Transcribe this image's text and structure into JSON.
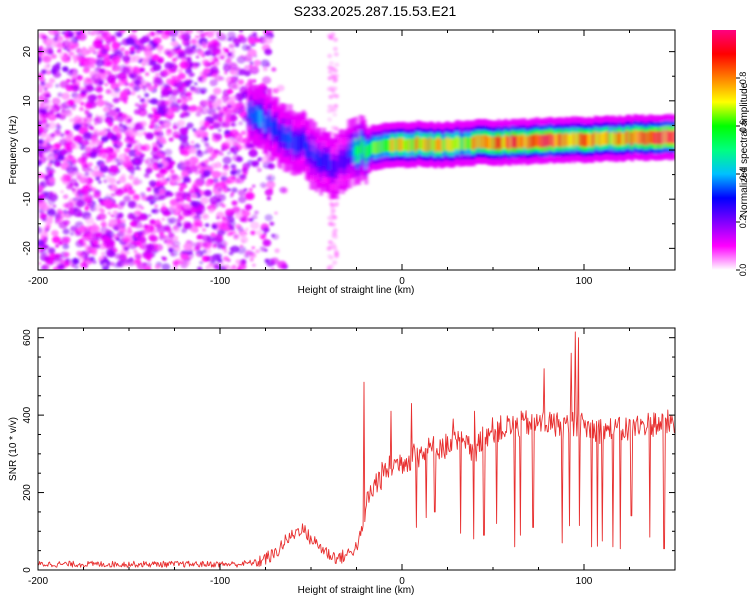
{
  "title": "S233.2025.287.15.53.E21",
  "chart_data": [
    {
      "type": "heatmap",
      "name": "spectrogram",
      "xlabel": "Height of straight line (km)",
      "ylabel": "Frequency (Hz)",
      "xlim": [
        -200,
        150
      ],
      "ylim": [
        -24.4,
        24.4
      ],
      "xticks": [
        -200,
        -100,
        0,
        100
      ],
      "yticks": [
        -20,
        -10,
        0,
        10,
        20
      ],
      "colorbar": {
        "label": "Normalized spectral amplitude",
        "range": [
          0,
          1
        ],
        "ticks": [
          0.0,
          0.2,
          0.4,
          0.6,
          0.8
        ],
        "tick_labels": [
          "0.0",
          "0.2",
          "0.4",
          "0.6",
          "0.8"
        ],
        "colors": [
          "#ffffff",
          "#ff00ff",
          "#8000ff",
          "#0000ff",
          "#00c0ff",
          "#00ff80",
          "#00ff00",
          "#ffff00",
          "#ff8000",
          "#ff0000",
          "#ff0080"
        ]
      },
      "ridge": {
        "x": [
          -85,
          -78,
          -72,
          -66,
          -60,
          -55,
          -50,
          -45,
          -40,
          -35,
          -30,
          -25,
          -20,
          -15,
          -10,
          -5,
          0,
          10,
          20,
          30,
          40,
          50,
          60,
          70,
          80,
          90,
          100,
          110,
          120,
          130,
          140,
          150
        ],
        "freq": [
          7,
          7,
          5,
          3,
          2,
          1,
          -1,
          -2,
          -3,
          -3,
          -1,
          0,
          0,
          0.5,
          1,
          1,
          1,
          1.2,
          1,
          1.3,
          1.5,
          1.5,
          1.6,
          1.8,
          2,
          2,
          2.1,
          2.3,
          2.4,
          2.5,
          2.6,
          2.7
        ],
        "amplitude": [
          0.3,
          0.4,
          0.3,
          0.35,
          0.3,
          0.3,
          0.3,
          0.3,
          0.3,
          0.25,
          0.3,
          0.5,
          0.6,
          0.65,
          0.6,
          0.7,
          0.7,
          0.75,
          0.75,
          0.6,
          0.75,
          0.8,
          0.85,
          0.8,
          0.9,
          0.8,
          0.8,
          0.8,
          0.8,
          0.85,
          0.9,
          0.9
        ]
      },
      "noise_region": {
        "x_range": [
          -200,
          -75
        ],
        "amplitude": 0.12
      },
      "artifact_column": {
        "x": -38,
        "amplitude": 0.05
      }
    },
    {
      "type": "line",
      "name": "snr",
      "xlabel": "Height of straight line (km)",
      "ylabel": "SNR (10 * v/v)",
      "xlim": [
        -200,
        150
      ],
      "ylim": [
        0,
        625
      ],
      "xticks": [
        -200,
        -100,
        0,
        100
      ],
      "yticks": [
        0,
        200,
        400,
        600
      ],
      "color": "#e83030",
      "x": [
        -200,
        -90,
        -80,
        -70,
        -65,
        -60,
        -55,
        -52,
        -50,
        -45,
        -40,
        -35,
        -30,
        -25,
        -22,
        -20,
        -19,
        -15,
        -10,
        -5,
        0,
        5,
        10,
        15,
        20,
        25,
        30,
        35,
        40,
        45,
        50,
        60,
        70,
        80,
        90,
        95,
        100,
        110,
        120,
        130,
        140,
        150
      ],
      "values": [
        15,
        15,
        20,
        40,
        70,
        90,
        110,
        90,
        80,
        60,
        40,
        30,
        40,
        60,
        100,
        150,
        180,
        220,
        250,
        270,
        280,
        290,
        300,
        310,
        320,
        320,
        330,
        320,
        300,
        350,
        360,
        370,
        380,
        380,
        370,
        380,
        370,
        360,
        360,
        370,
        380,
        380
      ],
      "spikes": [
        {
          "x": -21,
          "y": 485
        },
        {
          "x": -6,
          "y": 410
        },
        {
          "x": 5,
          "y": 430
        },
        {
          "x": 18,
          "y": 380
        },
        {
          "x": 28,
          "y": 390
        },
        {
          "x": 40,
          "y": 410
        },
        {
          "x": 62,
          "y": 460
        },
        {
          "x": 78,
          "y": 520
        },
        {
          "x": 93,
          "y": 560
        },
        {
          "x": 95,
          "y": 615
        },
        {
          "x": 97,
          "y": 600
        }
      ],
      "dips": [
        {
          "x": 8,
          "y": 110
        },
        {
          "x": 18,
          "y": 150
        },
        {
          "x": 32,
          "y": 95
        },
        {
          "x": 45,
          "y": 90
        },
        {
          "x": 52,
          "y": 120
        },
        {
          "x": 62,
          "y": 60
        },
        {
          "x": 65,
          "y": 90
        },
        {
          "x": 72,
          "y": 110
        },
        {
          "x": 88,
          "y": 70
        },
        {
          "x": 104,
          "y": 60
        },
        {
          "x": 110,
          "y": 75
        },
        {
          "x": 116,
          "y": 60
        },
        {
          "x": 120,
          "y": 55
        },
        {
          "x": 126,
          "y": 140
        },
        {
          "x": 136,
          "y": 85
        },
        {
          "x": 144,
          "y": 55
        }
      ]
    }
  ]
}
